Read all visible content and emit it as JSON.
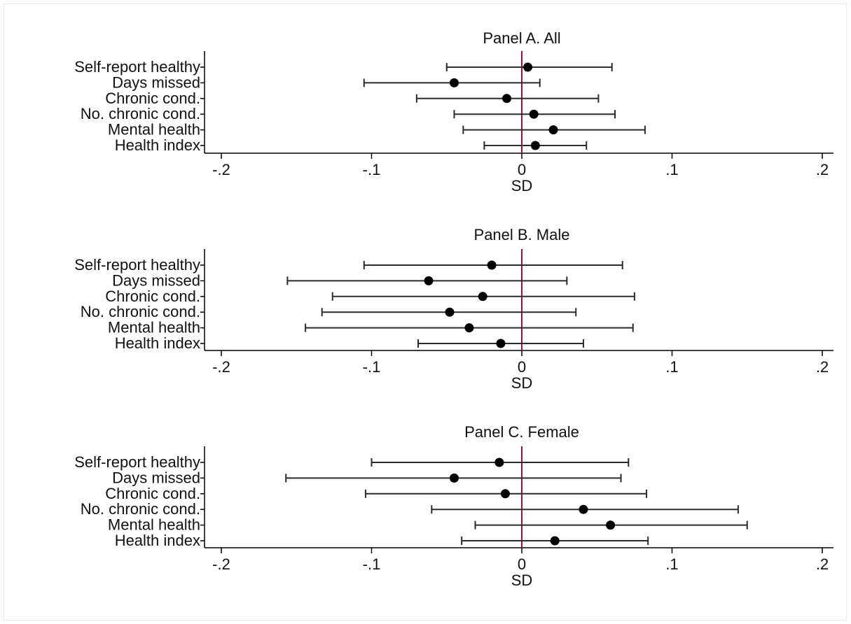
{
  "colors": {
    "background": "#ffffff",
    "frame": "#e3e8ea",
    "axis": "#000000",
    "ci_line": "#2b2b2b",
    "marker": "#000000",
    "reference_line": "#99103a"
  },
  "chart_data": [
    {
      "type": "scatter",
      "title": "Panel A. All",
      "xlabel": "SD",
      "ylabel": "",
      "xlim": [
        -0.2,
        0.2
      ],
      "xticks": [
        -0.2,
        -0.1,
        0,
        0.1,
        0.2
      ],
      "xtick_labels": [
        "-.2",
        "-.1",
        "0",
        ".1",
        ".2"
      ],
      "reference_line_x": 0,
      "grid": false,
      "categories": [
        "Self-report healthy",
        "Days missed",
        "Chronic cond.",
        "No. chronic cond.",
        "Mental health",
        "Health index"
      ],
      "points": [
        {
          "estimate": 0.004,
          "ci_low": -0.05,
          "ci_high": 0.06
        },
        {
          "estimate": -0.045,
          "ci_low": -0.105,
          "ci_high": 0.012
        },
        {
          "estimate": -0.01,
          "ci_low": -0.07,
          "ci_high": 0.051
        },
        {
          "estimate": 0.008,
          "ci_low": -0.045,
          "ci_high": 0.062
        },
        {
          "estimate": 0.021,
          "ci_low": -0.039,
          "ci_high": 0.082
        },
        {
          "estimate": 0.009,
          "ci_low": -0.025,
          "ci_high": 0.043
        }
      ]
    },
    {
      "type": "scatter",
      "title": "Panel B. Male",
      "xlabel": "SD",
      "ylabel": "",
      "xlim": [
        -0.2,
        0.2
      ],
      "xticks": [
        -0.2,
        -0.1,
        0,
        0.1,
        0.2
      ],
      "xtick_labels": [
        "-.2",
        "-.1",
        "0",
        ".1",
        ".2"
      ],
      "reference_line_x": 0,
      "grid": false,
      "categories": [
        "Self-report healthy",
        "Days missed",
        "Chronic cond.",
        "No. chronic cond.",
        "Mental health",
        "Health index"
      ],
      "points": [
        {
          "estimate": -0.02,
          "ci_low": -0.105,
          "ci_high": 0.067
        },
        {
          "estimate": -0.062,
          "ci_low": -0.156,
          "ci_high": 0.03
        },
        {
          "estimate": -0.026,
          "ci_low": -0.126,
          "ci_high": 0.075
        },
        {
          "estimate": -0.048,
          "ci_low": -0.133,
          "ci_high": 0.036
        },
        {
          "estimate": -0.035,
          "ci_low": -0.144,
          "ci_high": 0.074
        },
        {
          "estimate": -0.014,
          "ci_low": -0.069,
          "ci_high": 0.041
        }
      ]
    },
    {
      "type": "scatter",
      "title": "Panel C. Female",
      "xlabel": "SD",
      "ylabel": "",
      "xlim": [
        -0.2,
        0.2
      ],
      "xticks": [
        -0.2,
        -0.1,
        0,
        0.1,
        0.2
      ],
      "xtick_labels": [
        "-.2",
        "-.1",
        "0",
        ".1",
        ".2"
      ],
      "reference_line_x": 0,
      "grid": false,
      "categories": [
        "Self-report healthy",
        "Days missed",
        "Chronic cond.",
        "No. chronic cond.",
        "Mental health",
        "Health index"
      ],
      "points": [
        {
          "estimate": -0.015,
          "ci_low": -0.1,
          "ci_high": 0.071
        },
        {
          "estimate": -0.045,
          "ci_low": -0.157,
          "ci_high": 0.066
        },
        {
          "estimate": -0.011,
          "ci_low": -0.104,
          "ci_high": 0.083
        },
        {
          "estimate": 0.041,
          "ci_low": -0.06,
          "ci_high": 0.144
        },
        {
          "estimate": 0.059,
          "ci_low": -0.031,
          "ci_high": 0.15
        },
        {
          "estimate": 0.022,
          "ci_low": -0.04,
          "ci_high": 0.084
        }
      ]
    }
  ]
}
